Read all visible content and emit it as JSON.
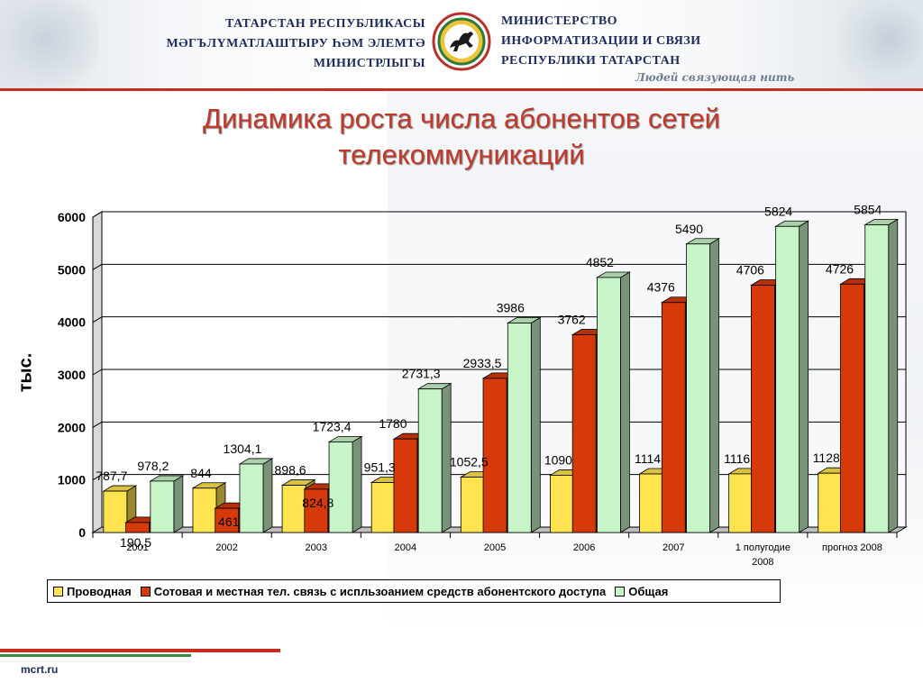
{
  "header": {
    "left_lines": [
      "ТАТАРСТАН РЕСПУБЛИКАСЫ",
      "МӘГЪЛҮМАТЛАШТЫРУ ҺӘМ  ЭЛЕМТӘ",
      "МИНИСТРЛЫГЫ"
    ],
    "right_lines": [
      "МИНИСТЕРСТВО",
      "ИНФОРМАТИЗАЦИИ И СВЯЗИ",
      "РЕСПУБЛИКИ ТАТАРСТАН"
    ],
    "slogan": "Людей связующая нить",
    "emblem_icon": "tatarstan-emblem-icon"
  },
  "slide": {
    "title_line1": "Динамика роста числа абонентов сетей",
    "title_line2": "телекоммуникаций"
  },
  "chart_data": {
    "type": "bar",
    "style": "3d-clustered",
    "ylabel": "тыс.",
    "ylim": [
      0,
      6000
    ],
    "yticks": [
      0,
      1000,
      2000,
      3000,
      4000,
      5000,
      6000
    ],
    "grid": true,
    "legend": "bottom",
    "categories": [
      "2001",
      "2002",
      "2003",
      "2004",
      "2005",
      "2006",
      "2007",
      "1 полугодие 2008",
      "прогноз 2008"
    ],
    "series": [
      {
        "name": "Проводная",
        "color": "#ffe34f",
        "values": [
          787.7,
          844,
          898.6,
          951.3,
          1052.5,
          1090,
          1114,
          1116,
          1128
        ],
        "labels": [
          "787,7",
          "844",
          "898,6",
          "951,3",
          "1052,5",
          "1090",
          "1114",
          "1116",
          "1128"
        ]
      },
      {
        "name": "Сотовая и местная тел. связь с испльзоанием средств абонентского доступа",
        "color": "#d63a0b",
        "values": [
          190.5,
          461,
          824.8,
          1780,
          2933.5,
          3762,
          4376,
          4706,
          4726
        ],
        "labels": [
          "190,5",
          "461",
          "824,8",
          "1780",
          "2933,5",
          "3762",
          "4376",
          "4706",
          "4726"
        ]
      },
      {
        "name": "Общая",
        "color": "#c8f5c8",
        "values": [
          978.2,
          1304.1,
          1723.4,
          2731.3,
          3986,
          4852,
          5490,
          5824,
          5854
        ],
        "labels": [
          "978,2",
          "1304,1",
          "1723,4",
          "2731,3",
          "3986",
          "4852",
          "5490",
          "5824",
          "5854"
        ]
      }
    ]
  },
  "footer": {
    "site": "mcrt.ru"
  }
}
